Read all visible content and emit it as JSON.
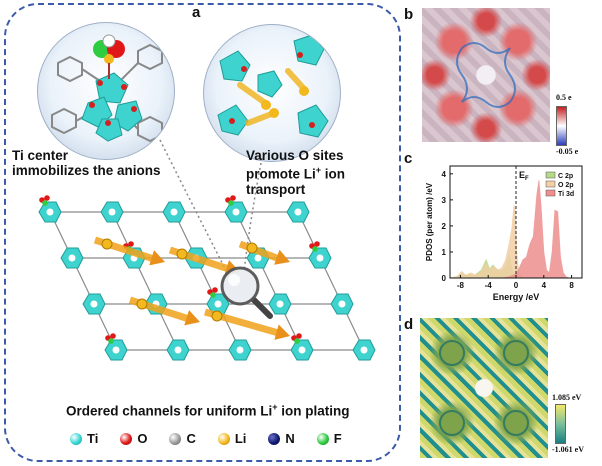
{
  "panels": {
    "a": {
      "letter": "a",
      "callout_left": {
        "line1": "Ti  center",
        "line2": "immobilizes the anions"
      },
      "callout_right": {
        "line1": "Various O sites",
        "line2_pre": "promote Li",
        "line2_sup": "+",
        "line2_post": " ion",
        "line3": "transport"
      },
      "caption_pre": "Ordered channels for uniform Li",
      "caption_sup": "+",
      "caption_post": " ion plating",
      "legend": [
        {
          "symbol": "Ti",
          "color": "#33d6d6"
        },
        {
          "symbol": "O",
          "color": "#e01818"
        },
        {
          "symbol": "C",
          "color": "#9a9a9a"
        },
        {
          "symbol": "Li",
          "color": "#f2b81d"
        },
        {
          "symbol": "N",
          "color": "#101a70"
        },
        {
          "symbol": "F",
          "color": "#2ecc40"
        }
      ]
    },
    "b": {
      "letter": "b",
      "scale_max": "0.5 e",
      "scale_min": "-0.05 e",
      "colors": [
        "#2a3fbf",
        "#ffffff",
        "#c81f1f"
      ]
    },
    "c": {
      "letter": "c"
    },
    "d": {
      "letter": "d",
      "scale_max": "1.085 eV",
      "scale_min": "-1.061 eV",
      "colors": [
        "#1a7f7f",
        "#f3e86b"
      ]
    }
  },
  "chart_data": {
    "type": "area",
    "ylabel": "PDOS (per atom) /eV",
    "xlabel": "Energy /eV",
    "fermi_label": "E",
    "fermi_sub": "F",
    "xlim": [
      -9.5,
      9.5
    ],
    "ylim": [
      0,
      4.3
    ],
    "xticks": [
      -8,
      -4,
      0,
      4,
      8
    ],
    "yticks": [
      0,
      1,
      2,
      3,
      4
    ],
    "series": [
      {
        "name": "C 2p",
        "color": "#b7d98a",
        "x": [
          -9.5,
          -8.5,
          -7.8,
          -7.3,
          -6.8,
          -6.0,
          -5.0,
          -4.3,
          -3.8,
          -3.3,
          -2.8,
          -2.2,
          -1.5,
          -1.0,
          -0.5,
          -0.2,
          0.0,
          0.5,
          1.0,
          9.5
        ],
        "y": [
          0.0,
          0.05,
          0.2,
          0.1,
          0.15,
          0.1,
          0.3,
          0.7,
          0.35,
          0.5,
          0.35,
          0.25,
          0.45,
          0.9,
          0.3,
          0.1,
          0.05,
          0.0,
          0.0,
          0.0
        ]
      },
      {
        "name": "O 2p",
        "color": "#f2cfa4",
        "x": [
          -9.5,
          -8.5,
          -7.8,
          -7.2,
          -6.5,
          -5.8,
          -5.0,
          -4.3,
          -3.8,
          -3.2,
          -2.6,
          -2.0,
          -1.5,
          -1.0,
          -0.6,
          -0.3,
          -0.1,
          0.1,
          0.4,
          1.0,
          9.5
        ],
        "y": [
          0.0,
          0.05,
          0.25,
          0.1,
          0.2,
          0.1,
          0.25,
          0.55,
          0.3,
          0.45,
          0.3,
          0.4,
          0.7,
          1.3,
          1.9,
          2.8,
          2.6,
          1.0,
          0.2,
          0.0,
          0.0
        ]
      },
      {
        "name": "Ti 3d",
        "color": "#ee8f8f",
        "x": [
          -9.5,
          -2.0,
          -1.0,
          -0.5,
          0.0,
          0.5,
          1.0,
          1.5,
          2.0,
          2.5,
          3.0,
          3.3,
          3.6,
          4.0,
          4.4,
          4.8,
          5.2,
          5.6,
          6.0,
          6.4,
          6.8,
          7.2,
          7.6,
          9.5
        ],
        "y": [
          0.0,
          0.0,
          0.05,
          0.1,
          0.15,
          0.4,
          0.7,
          0.8,
          1.3,
          1.6,
          3.2,
          3.75,
          2.8,
          1.0,
          0.3,
          0.2,
          1.0,
          2.6,
          2.55,
          0.8,
          0.2,
          0.05,
          0.0,
          0.0
        ]
      }
    ]
  }
}
